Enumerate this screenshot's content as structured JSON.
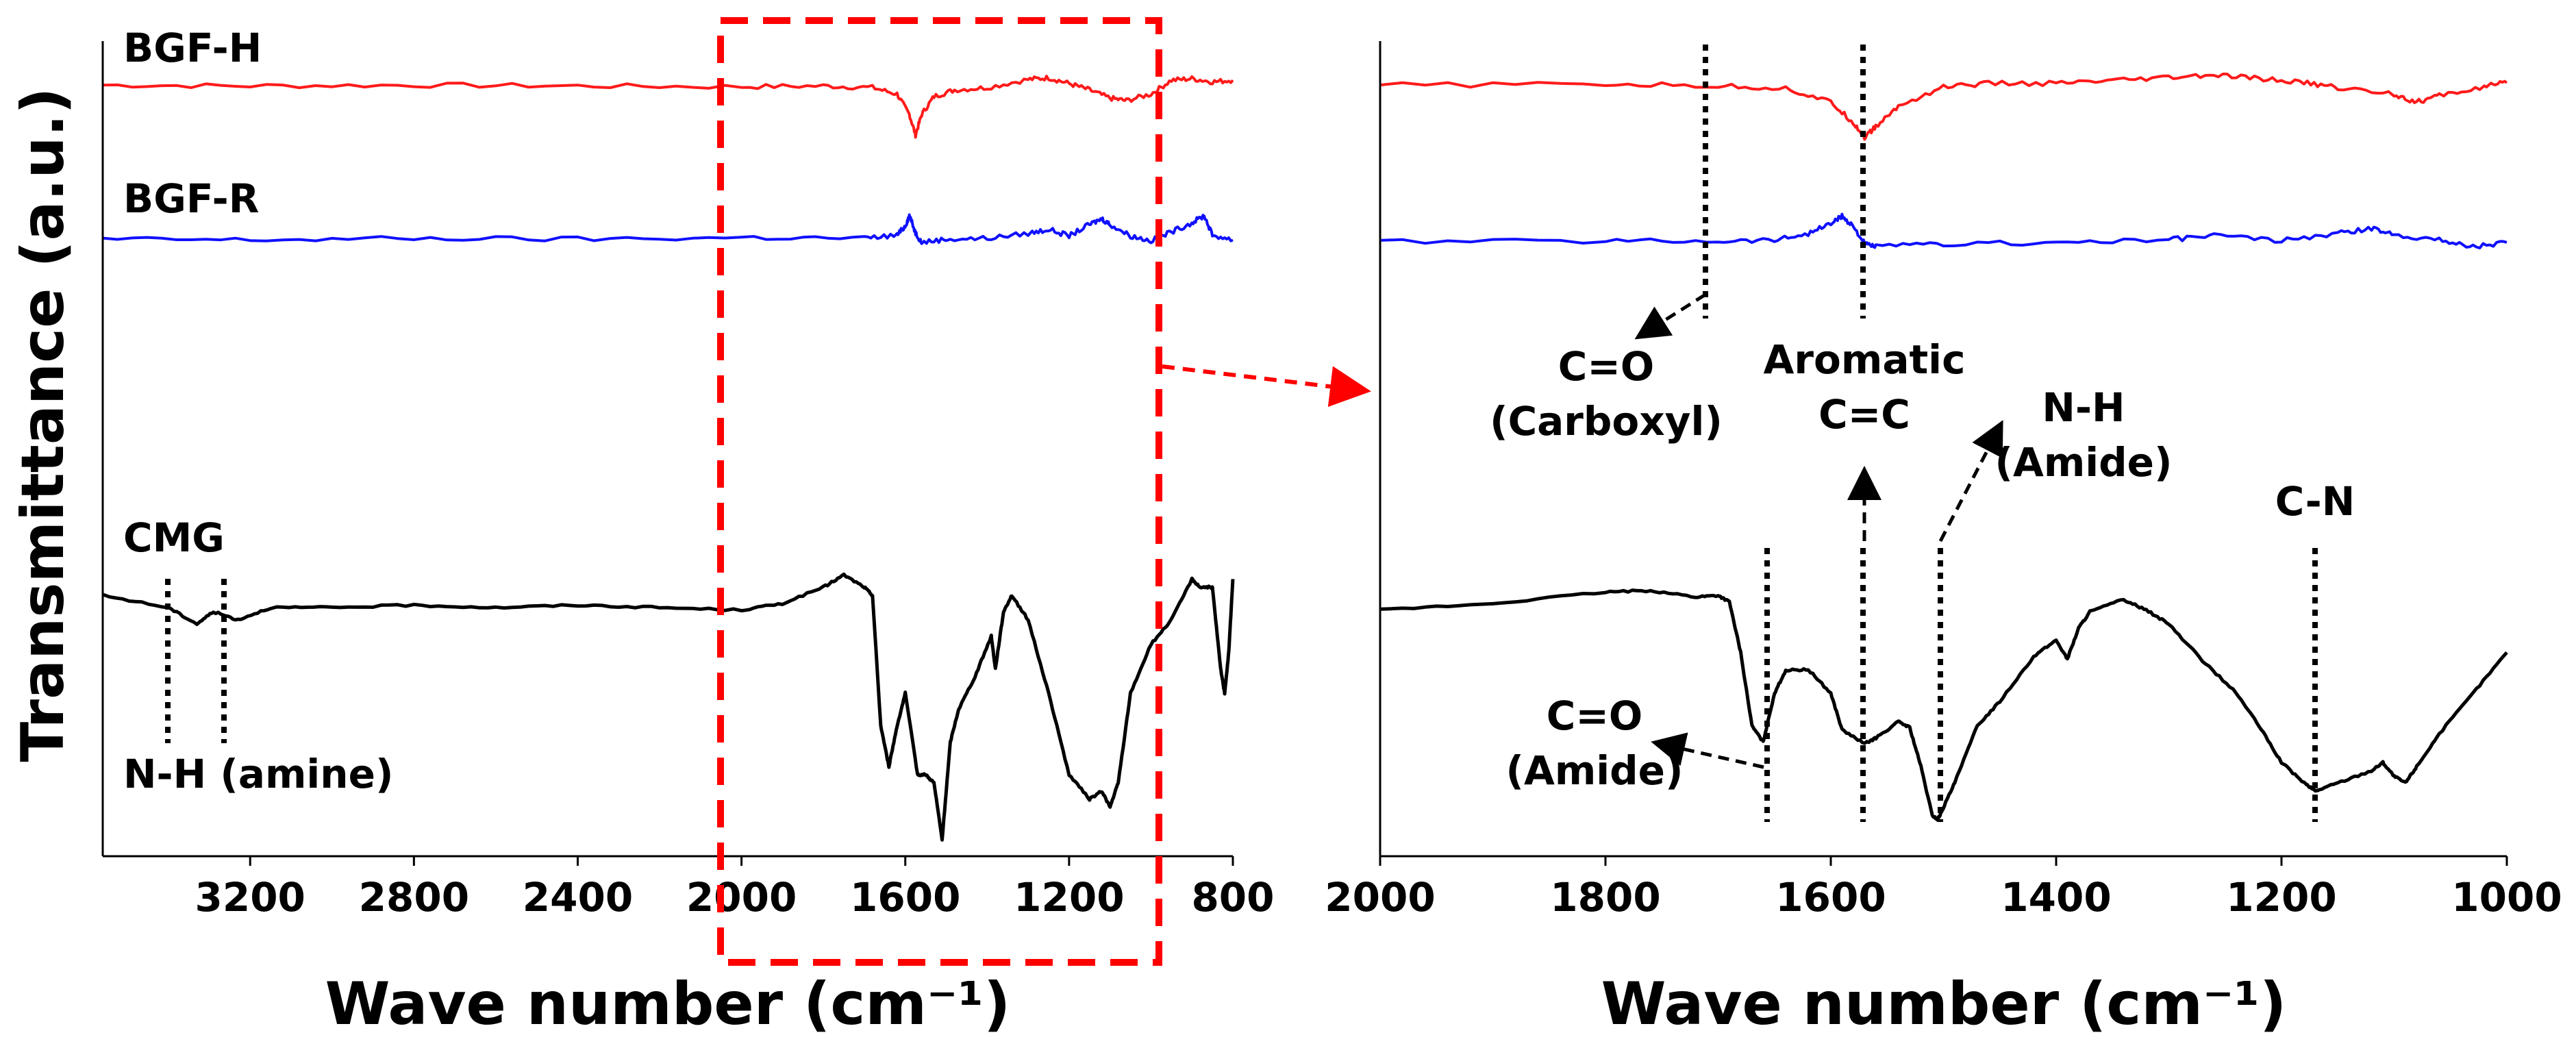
{
  "colors": {
    "bgf_h": "#ff1a1a",
    "bgf_r": "#1010ff",
    "cmg": "#000000",
    "highlight": "#ff0000",
    "annotation": "#000000"
  },
  "chart_data": [
    {
      "type": "line",
      "panel": "left",
      "title": "",
      "xlabel": "Wave number (cm⁻¹)",
      "ylabel": "Transmittance (a.u.)",
      "xlim": [
        3560,
        800
      ],
      "xticks": [
        "3200",
        "2800",
        "2400",
        "2000",
        "1600",
        "1200",
        "800"
      ],
      "ylim": [
        0,
        100
      ],
      "series": [
        {
          "name": "BGF-H",
          "x": [
            3560,
            3200,
            2800,
            2400,
            2000,
            1800,
            1680,
            1620,
            1590,
            1575,
            1560,
            1530,
            1480,
            1400,
            1300,
            1250,
            1200,
            1150,
            1100,
            1060,
            1000,
            950,
            900,
            850,
            800
          ],
          "values": [
            94.6,
            94.5,
            94.6,
            94.5,
            94.4,
            94.5,
            94.3,
            93.5,
            91,
            88.5,
            91,
            93.2,
            94,
            94.3,
            95.3,
            95.5,
            94.8,
            94,
            93,
            92.7,
            93.5,
            95.2,
            95.4,
            95,
            95.2
          ]
        },
        {
          "name": "BGF-R",
          "x": [
            3560,
            3200,
            2800,
            2400,
            2000,
            1700,
            1620,
            1600,
            1590,
            1575,
            1560,
            1500,
            1400,
            1300,
            1250,
            1200,
            1150,
            1120,
            1100,
            1050,
            1000,
            950,
            900,
            870,
            850,
            800
          ],
          "values": [
            75.7,
            75.6,
            75.8,
            75.7,
            75.9,
            75.8,
            76.2,
            77.3,
            78.6,
            76.5,
            75.3,
            75.7,
            75.8,
            76.4,
            76.9,
            76.1,
            77.5,
            78.2,
            77.5,
            76.1,
            75.5,
            76.6,
            77.7,
            78.6,
            76.2,
            75.6
          ]
        },
        {
          "name": "CMG",
          "x": [
            3560,
            3400,
            3330,
            3290,
            3230,
            3150,
            3000,
            2800,
            2600,
            2400,
            2200,
            2000,
            1900,
            1800,
            1750,
            1700,
            1680,
            1660,
            1640,
            1620,
            1600,
            1570,
            1550,
            1530,
            1510,
            1490,
            1470,
            1430,
            1390,
            1380,
            1360,
            1340,
            1300,
            1250,
            1200,
            1150,
            1120,
            1100,
            1080,
            1050,
            1000,
            950,
            900,
            880,
            850,
            830,
            820,
            810,
            800
          ],
          "values": [
            32,
            30.5,
            28.5,
            30,
            29,
            30.5,
            30.5,
            30.8,
            30.5,
            30.8,
            30.5,
            30.2,
            31,
            33,
            34.5,
            33,
            32,
            16,
            11,
            16,
            20,
            10,
            10,
            9,
            2,
            14,
            18,
            22,
            27,
            23,
            30,
            32,
            29,
            20,
            10,
            7,
            8,
            6,
            9,
            20,
            26,
            29,
            34,
            33,
            33,
            23,
            20,
            25,
            34
          ]
        }
      ],
      "annotations": [
        "N-H (amine)"
      ],
      "highlight_region": {
        "x_range": [
          2000,
          960
        ],
        "label": ""
      }
    },
    {
      "type": "line",
      "panel": "right",
      "title": "",
      "xlabel": "Wave number (cm⁻¹)",
      "ylabel": "",
      "xlim": [
        2000,
        1000
      ],
      "xticks": [
        "2000",
        "1800",
        "1600",
        "1400",
        "1200",
        "1000"
      ],
      "ylim": [
        0,
        100
      ],
      "series": [
        {
          "name": "BGF-H",
          "x": [
            2000,
            1800,
            1700,
            1640,
            1600,
            1580,
            1570,
            1560,
            1540,
            1500,
            1460,
            1400,
            1350,
            1300,
            1260,
            1220,
            1180,
            1150,
            1100,
            1080,
            1060,
            1020,
            1000
          ],
          "values": [
            94.6,
            94.7,
            94.5,
            94.2,
            92.5,
            90,
            88.2,
            89.5,
            92,
            94.4,
            94.8,
            94.8,
            95.1,
            95.5,
            95.8,
            95.4,
            94.9,
            94.3,
            93.5,
            92.5,
            93.3,
            94.4,
            94.9
          ]
        },
        {
          "name": "BGF-R",
          "x": [
            2000,
            1800,
            1700,
            1650,
            1620,
            1600,
            1590,
            1580,
            1570,
            1560,
            1500,
            1400,
            1300,
            1260,
            1200,
            1150,
            1120,
            1100,
            1060,
            1030,
            1000
          ],
          "values": [
            75.4,
            75.5,
            75.5,
            75.6,
            76.4,
            77.6,
            78.5,
            77.3,
            75.1,
            74.8,
            75.1,
            75.3,
            75.6,
            76.2,
            75.5,
            76.4,
            77,
            76.3,
            75.6,
            74.8,
            75.3
          ]
        },
        {
          "name": "CMG",
          "x": [
            2000,
            1900,
            1800,
            1760,
            1720,
            1700,
            1690,
            1680,
            1670,
            1660,
            1650,
            1640,
            1620,
            1600,
            1590,
            1570,
            1560,
            1540,
            1530,
            1520,
            1510,
            1505,
            1500,
            1490,
            1470,
            1450,
            1420,
            1400,
            1390,
            1380,
            1370,
            1340,
            1320,
            1300,
            1270,
            1240,
            1220,
            1200,
            1180,
            1170,
            1150,
            1120,
            1110,
            1100,
            1090,
            1080,
            1060,
            1030,
            1000
          ],
          "values": [
            30.2,
            31,
            32.4,
            32.6,
            31.8,
            32,
            31.2,
            25,
            16,
            14,
            20,
            22.8,
            22.9,
            20,
            15.5,
            13.8,
            14.5,
            16.5,
            15.8,
            11,
            5,
            4.5,
            6,
            9,
            16,
            19,
            24.5,
            26.5,
            24.2,
            28,
            30,
            31.5,
            30.2,
            28.5,
            24,
            20,
            16,
            11.5,
            9,
            8,
            9,
            10.5,
            11.5,
            9.8,
            9,
            11,
            15,
            20,
            25
          ]
        }
      ],
      "annotations": [
        "C=O",
        "(Carboxyl)",
        "Aromatic",
        "C=C",
        "N-H",
        "(Amide)",
        "C=O",
        "(Amide)",
        "C-N"
      ]
    }
  ],
  "labels": {
    "bgf_h": "BGF-H",
    "bgf_r": "BGF-R",
    "cmg": "CMG",
    "nh_amine": "N-H (amine)",
    "ylabel": "Transmittance (a.u.)",
    "xlabel_left": "Wave number (cm⁻¹)",
    "xlabel_right": "Wave number (cm⁻¹)",
    "co_carboxyl_1": "C=O",
    "co_carboxyl_2": "(Carboxyl)",
    "aromatic_1": "Aromatic",
    "aromatic_2": "C=C",
    "nh_amide_1": "N-H",
    "nh_amide_2": "(Amide)",
    "co_amide_1": "C=O",
    "co_amide_2": "(Amide)",
    "cn": "C-N"
  }
}
